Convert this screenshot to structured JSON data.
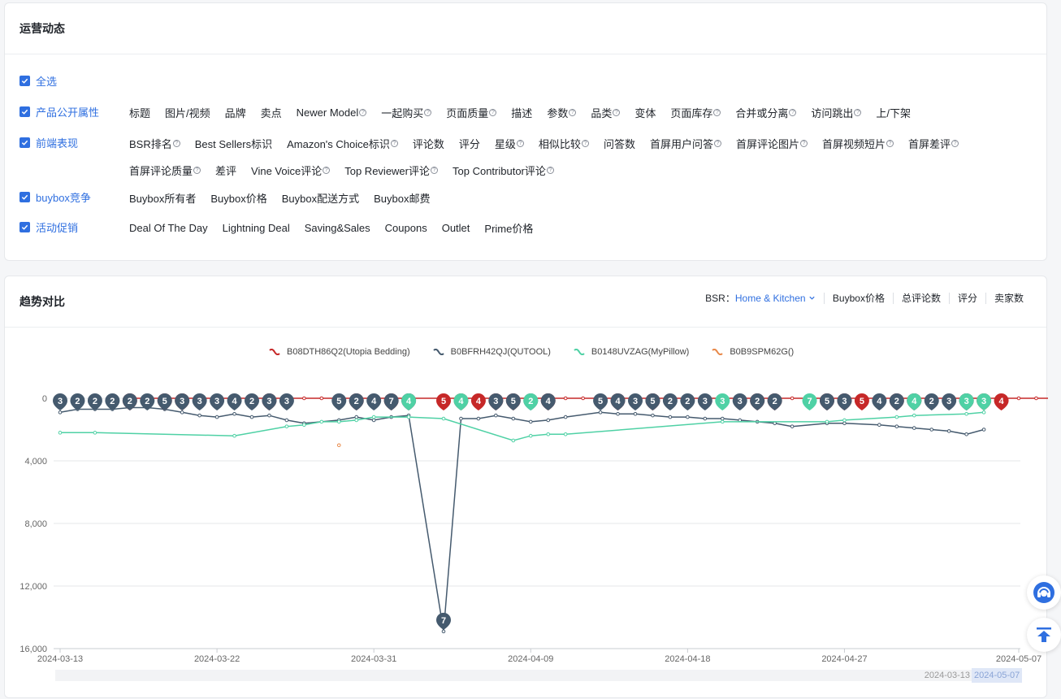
{
  "ops_panel": {
    "title": "运营动态",
    "select_all": "全选",
    "groups": [
      {
        "label": "产品公开属性",
        "items": [
          {
            "t": "标题",
            "q": false
          },
          {
            "t": "图片/视频",
            "q": false
          },
          {
            "t": "品牌",
            "q": false
          },
          {
            "t": "卖点",
            "q": false
          },
          {
            "t": "Newer Model",
            "q": true
          },
          {
            "t": "一起购买",
            "q": true
          },
          {
            "t": "页面质量",
            "q": true
          },
          {
            "t": "描述",
            "q": false
          },
          {
            "t": "参数",
            "q": true
          },
          {
            "t": "品类",
            "q": true
          },
          {
            "t": "变体",
            "q": false
          },
          {
            "t": "页面库存",
            "q": true
          },
          {
            "t": "合并或分离",
            "q": true
          },
          {
            "t": "访问跳出",
            "q": true
          },
          {
            "t": "上/下架",
            "q": false
          }
        ]
      },
      {
        "label": "前端表现",
        "items": [
          {
            "t": "BSR排名",
            "q": true
          },
          {
            "t": "Best Sellers标识",
            "q": false
          },
          {
            "t": "Amazon's Choice标识",
            "q": true
          },
          {
            "t": "评论数",
            "q": false
          },
          {
            "t": "评分",
            "q": false
          },
          {
            "t": "星级",
            "q": true
          },
          {
            "t": "相似比较",
            "q": true
          },
          {
            "t": "问答数",
            "q": false
          },
          {
            "t": "首屏用户问答",
            "q": true
          },
          {
            "t": "首屏评论图片",
            "q": true
          },
          {
            "t": "首屏视频短片",
            "q": true
          },
          {
            "t": "首屏差评",
            "q": true
          },
          {
            "t": "首屏评论质量",
            "q": true
          },
          {
            "t": "差评",
            "q": false
          },
          {
            "t": "Vine Voice评论",
            "q": true
          },
          {
            "t": "Top Reviewer评论",
            "q": true
          },
          {
            "t": "Top Contributor评论",
            "q": true
          }
        ]
      },
      {
        "label": "buybox竞争",
        "items": [
          {
            "t": "Buybox所有者",
            "q": false
          },
          {
            "t": "Buybox价格",
            "q": false
          },
          {
            "t": "Buybox配送方式",
            "q": false
          },
          {
            "t": "Buybox邮费",
            "q": false
          }
        ]
      },
      {
        "label": "活动促销",
        "items": [
          {
            "t": "Deal Of The Day",
            "q": false
          },
          {
            "t": "Lightning Deal",
            "q": false
          },
          {
            "t": "Saving&Sales",
            "q": false
          },
          {
            "t": "Coupons",
            "q": false
          },
          {
            "t": "Outlet",
            "q": false
          },
          {
            "t": "Prime价格",
            "q": false
          }
        ]
      }
    ]
  },
  "trend_panel": {
    "title": "趋势对比",
    "bsr_label": "BSR：",
    "bsr_category": "Home & Kitchen",
    "tabs": [
      "Buybox价格",
      "总评论数",
      "评分",
      "卖家数"
    ]
  },
  "chart_data": {
    "type": "line",
    "ylim": [
      0,
      16000
    ],
    "ylabel": "",
    "yticks": [
      0,
      4000,
      8000,
      12000,
      16000
    ],
    "ytick_labels": [
      "0",
      "4,000",
      "8,000",
      "12,000",
      "16,000"
    ],
    "xticks": [
      "2024-03-13",
      "2024-03-22",
      "2024-03-31",
      "2024-04-09",
      "2024-04-18",
      "2024-04-27",
      "2024-05-07"
    ],
    "slider_labels": [
      "2024-03-13",
      "2024-05-07"
    ],
    "series": [
      {
        "name": "B08DTH86Q2(Utopia Bedding)",
        "color": "#c62828",
        "points": [
          [
            4,
            0
          ],
          [
            5,
            0
          ],
          [
            6,
            0
          ],
          [
            7,
            0
          ],
          [
            12,
            0
          ],
          [
            13,
            0
          ],
          [
            14,
            0
          ],
          [
            15,
            0
          ],
          [
            16,
            0
          ],
          [
            17,
            0
          ],
          [
            22,
            0
          ],
          [
            23,
            0
          ],
          [
            24,
            0
          ],
          [
            25,
            0
          ],
          [
            26,
            0
          ],
          [
            27,
            0
          ],
          [
            28,
            0
          ],
          [
            29,
            0
          ],
          [
            30,
            0
          ],
          [
            31,
            0
          ],
          [
            32,
            0
          ],
          [
            40,
            0
          ],
          [
            41,
            0
          ],
          [
            42,
            0
          ],
          [
            43,
            0
          ],
          [
            44,
            0
          ],
          [
            45,
            0
          ],
          [
            46,
            0
          ],
          [
            47,
            0
          ],
          [
            48,
            0
          ],
          [
            49,
            0
          ],
          [
            50,
            0
          ],
          [
            51,
            0
          ],
          [
            52,
            0
          ],
          [
            53,
            0
          ],
          [
            54,
            0
          ],
          [
            55,
            0
          ],
          [
            56,
            0
          ],
          [
            57,
            0
          ],
          [
            58,
            0
          ],
          [
            59,
            0
          ],
          [
            60,
            0
          ],
          [
            61,
            0
          ],
          [
            62,
            0
          ],
          [
            63,
            0
          ],
          [
            64,
            0
          ],
          [
            65,
            0
          ],
          [
            66,
            0
          ],
          [
            67,
            0
          ],
          [
            68,
            0
          ],
          [
            69,
            0
          ],
          [
            70,
            0
          ]
        ],
        "markers": [
          [
            4,
            0,
            "5"
          ],
          [
            6,
            0,
            "6"
          ],
          [
            7,
            0,
            "5"
          ],
          [
            12,
            0,
            "6"
          ],
          [
            17,
            0,
            "9"
          ],
          [
            19,
            0,
            "7"
          ],
          [
            20,
            0,
            "7"
          ],
          [
            22,
            0,
            "5"
          ],
          [
            23,
            0,
            "5"
          ],
          [
            24,
            0,
            "4"
          ],
          [
            25,
            0,
            "3"
          ],
          [
            26,
            0,
            "3"
          ],
          [
            28,
            0,
            "6"
          ],
          [
            32,
            0,
            "7"
          ],
          [
            34,
            0,
            "7"
          ],
          [
            40,
            0,
            "6"
          ],
          [
            41,
            0,
            "5"
          ],
          [
            44,
            0,
            "9"
          ],
          [
            45,
            0,
            "4"
          ],
          [
            46,
            0,
            "5"
          ],
          [
            48,
            0,
            "7"
          ],
          [
            49,
            0,
            "5"
          ],
          [
            52,
            0,
            "9"
          ],
          [
            53,
            0,
            "4"
          ],
          [
            54,
            0,
            "4"
          ]
        ]
      },
      {
        "name": "B0BFRH42QJ(QUTOOL)",
        "color": "#455a6e",
        "points": [
          [
            0,
            900
          ],
          [
            1,
            700
          ],
          [
            2,
            700
          ],
          [
            3,
            700
          ],
          [
            4,
            600
          ],
          [
            5,
            600
          ],
          [
            6,
            700
          ],
          [
            7,
            900
          ],
          [
            8,
            1100
          ],
          [
            9,
            1200
          ],
          [
            10,
            1000
          ],
          [
            11,
            1200
          ],
          [
            12,
            1100
          ],
          [
            13,
            1400
          ],
          [
            14,
            1600
          ],
          [
            16,
            1400
          ],
          [
            17,
            1200
          ],
          [
            18,
            1400
          ],
          [
            19,
            1200
          ],
          [
            20,
            1100
          ],
          [
            22,
            14900
          ],
          [
            23,
            1300
          ],
          [
            24,
            1300
          ],
          [
            25,
            1100
          ],
          [
            26,
            1300
          ],
          [
            27,
            1500
          ],
          [
            28,
            1400
          ],
          [
            29,
            1200
          ],
          [
            31,
            900
          ],
          [
            32,
            1000
          ],
          [
            33,
            1000
          ],
          [
            34,
            1100
          ],
          [
            35,
            1200
          ],
          [
            36,
            1200
          ],
          [
            37,
            1300
          ],
          [
            38,
            1300
          ],
          [
            39,
            1400
          ],
          [
            40,
            1500
          ],
          [
            41,
            1600
          ],
          [
            42,
            1800
          ],
          [
            44,
            1600
          ],
          [
            45,
            1600
          ],
          [
            47,
            1700
          ],
          [
            48,
            1800
          ],
          [
            49,
            1900
          ],
          [
            50,
            2000
          ],
          [
            51,
            2100
          ],
          [
            52,
            2300
          ],
          [
            53,
            2000
          ]
        ],
        "markers": [
          [
            0,
            0,
            "3"
          ],
          [
            1,
            0,
            "2"
          ],
          [
            2,
            0,
            "2"
          ],
          [
            3,
            0,
            "2"
          ],
          [
            4,
            0,
            "2"
          ],
          [
            5,
            0,
            "2"
          ],
          [
            6,
            0,
            "5"
          ],
          [
            7,
            0,
            "3"
          ],
          [
            8,
            0,
            "3"
          ],
          [
            9,
            0,
            "3"
          ],
          [
            10,
            0,
            "4"
          ],
          [
            11,
            0,
            "2"
          ],
          [
            12,
            0,
            "3"
          ],
          [
            13,
            0,
            "3"
          ],
          [
            16,
            0,
            "5"
          ],
          [
            17,
            0,
            "2"
          ],
          [
            18,
            0,
            "4"
          ],
          [
            19,
            0,
            "7"
          ],
          [
            20,
            0,
            "4"
          ],
          [
            22,
            14900,
            "7"
          ],
          [
            25,
            0,
            "3"
          ],
          [
            26,
            0,
            "5"
          ],
          [
            27,
            0,
            "4"
          ],
          [
            28,
            0,
            "4"
          ],
          [
            31,
            0,
            "5"
          ],
          [
            32,
            0,
            "4"
          ],
          [
            33,
            0,
            "3"
          ],
          [
            34,
            0,
            "5"
          ],
          [
            35,
            0,
            "2"
          ],
          [
            36,
            0,
            "2"
          ],
          [
            37,
            0,
            "3"
          ],
          [
            39,
            0,
            "3"
          ],
          [
            40,
            0,
            "2"
          ],
          [
            41,
            0,
            "2"
          ],
          [
            44,
            0,
            "5"
          ],
          [
            45,
            0,
            "3"
          ],
          [
            47,
            0,
            "4"
          ],
          [
            48,
            0,
            "2"
          ],
          [
            49,
            0,
            "1"
          ],
          [
            50,
            0,
            "2"
          ],
          [
            51,
            0,
            "3"
          ],
          [
            52,
            0,
            "3"
          ]
        ]
      },
      {
        "name": "B0148UVZAG(MyPillow)",
        "color": "#4fd1a5",
        "points": [
          [
            0,
            2200
          ],
          [
            2,
            2200
          ],
          [
            10,
            2400
          ],
          [
            13,
            1800
          ],
          [
            14,
            1700
          ],
          [
            15,
            1500
          ],
          [
            16,
            1500
          ],
          [
            17,
            1400
          ],
          [
            18,
            1200
          ],
          [
            20,
            1200
          ],
          [
            22,
            1300
          ],
          [
            26,
            2700
          ],
          [
            27,
            2400
          ],
          [
            28,
            2300
          ],
          [
            29,
            2300
          ],
          [
            38,
            1500
          ],
          [
            44,
            1500
          ],
          [
            45,
            1400
          ],
          [
            48,
            1200
          ],
          [
            49,
            1100
          ],
          [
            52,
            1000
          ],
          [
            53,
            900
          ]
        ],
        "markers": [
          [
            20,
            0,
            "4"
          ],
          [
            23,
            0,
            "4"
          ],
          [
            27,
            0,
            "2"
          ],
          [
            38,
            0,
            "3"
          ],
          [
            43,
            0,
            "7"
          ],
          [
            49,
            0,
            "4"
          ],
          [
            52,
            0,
            "3"
          ],
          [
            53,
            0,
            "3"
          ]
        ]
      },
      {
        "name": "B0B9SPM62G()",
        "color": "#e8894a",
        "points": [
          [
            16,
            3000
          ]
        ],
        "markers": []
      }
    ],
    "x_day_of_first_tick": 0,
    "days_between_ticks": 9
  }
}
